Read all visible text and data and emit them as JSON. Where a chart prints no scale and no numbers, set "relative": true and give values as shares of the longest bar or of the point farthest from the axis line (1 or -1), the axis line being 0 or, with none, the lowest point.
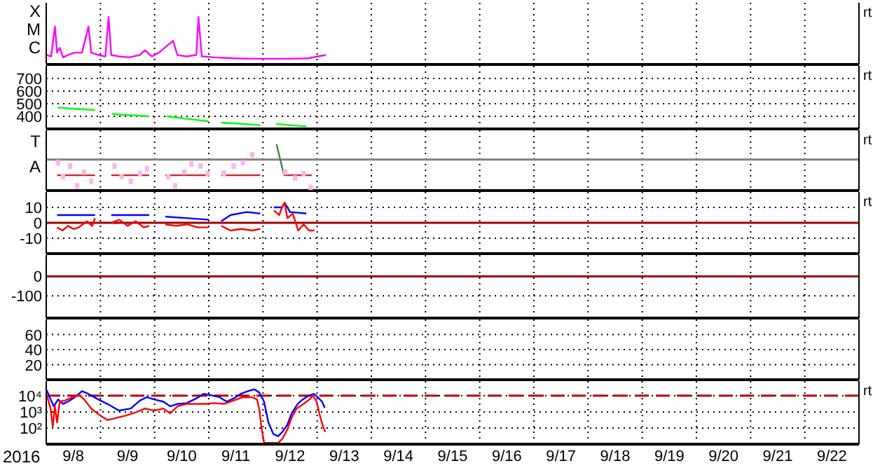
{
  "chart_data": [
    {
      "type": "line",
      "relative": true,
      "xlim": [
        "2016-09-08",
        "2016-09-23"
      ],
      "grid": "x",
      "tick_labels": false,
      "annotations": [
        "X",
        "M",
        "C",
        "rt"
      ],
      "series": [
        {
          "color": "#ff00ff",
          "x": [
            "2016-09-08T00:14",
            "2016-09-08T02:10",
            "2016-09-08T03:50",
            "2016-09-08T04:48",
            "2016-09-08T06:00",
            "2016-09-08T07:26",
            "2016-09-08T09:36",
            "2016-09-08T12:43",
            "2016-09-08T15:50",
            "2016-09-08T18:43",
            "2016-09-08T19:55",
            "2016-09-08T23:02",
            "2016-09-09T02:10",
            "2016-09-09T03:36",
            "2016-09-09T04:48",
            "2016-09-09T08:10",
            "2016-09-09T12:29",
            "2016-09-09T17:31",
            "2016-09-09T19:41",
            "2016-09-09T22:48",
            "2016-09-10T01:55",
            "2016-09-10T08:10",
            "2016-09-10T10:05",
            "2016-09-10T14:10",
            "2016-09-10T18:29",
            "2016-09-10T19:26",
            "2016-09-10T20:53",
            "2016-09-11T02:38",
            "2016-09-11T11:02",
            "2016-09-11T19:12",
            "2016-09-12T03:36",
            "2016-09-12T11:46",
            "2016-09-12T20:10",
            "2016-09-13T00:14",
            "2016-09-13T03:50"
          ],
          "values": [
            0.2,
            0.17,
            0.8,
            0.25,
            0.35,
            0.15,
            0.2,
            0.25,
            0.25,
            0.8,
            0.25,
            0.2,
            0.17,
            1,
            0.2,
            0.17,
            0.15,
            0.2,
            0.3,
            0.17,
            0.25,
            0.5,
            0.2,
            0.17,
            0.2,
            1,
            0.17,
            0.15,
            0.13,
            0.12,
            0.12,
            0.12,
            0.13,
            0.17,
            0.2
          ]
        }
      ]
    },
    {
      "type": "line",
      "xlim": [
        "2016-09-08",
        "2016-09-23"
      ],
      "ylim": [
        300,
        800
      ],
      "yticks": [
        400,
        500,
        600,
        700
      ],
      "grid": true,
      "tick_labels": "y",
      "annotations": [
        "rt"
      ],
      "series": [
        {
          "color": "#00ff00",
          "x": [
            "2016-09-08T05:02",
            "2016-09-08T12:00",
            "2016-09-08T21:36",
            "2016-09-08T22:48",
            "2016-09-09T05:02",
            "2016-09-09T12:00",
            "2016-09-09T21:36",
            "2016-09-09T22:48",
            "2016-09-10T05:17",
            "2016-09-10T14:24",
            "2016-09-11T00:00",
            "2016-09-11T02:24",
            "2016-09-11T05:31",
            "2016-09-11T14:24",
            "2016-09-11T22:48",
            "2016-09-12T02:24",
            "2016-09-12T05:46",
            "2016-09-12T12:00",
            "2016-09-12T19:12"
          ],
          "values": [
            470,
            460,
            450,
            null,
            420,
            410,
            400,
            null,
            400,
            380,
            360,
            null,
            350,
            340,
            330,
            null,
            340,
            330,
            320
          ]
        }
      ]
    },
    {
      "type": "line",
      "relative": true,
      "xlim": [
        "2016-09-08",
        "2016-09-23"
      ],
      "grid": "x",
      "tick_labels": false,
      "annotations": [
        "T",
        "A",
        "rt"
      ],
      "ref_lines": [
        {
          "axis": "y",
          "value": 0.67,
          "color": "#808080"
        }
      ],
      "series": [
        {
          "type": "scatter",
          "color": "#ffb4f0",
          "x": [
            "2016-09-08T05:17",
            "2016-09-08T07:26",
            "2016-09-08T10:34",
            "2016-09-08T13:41",
            "2016-09-08T16:48",
            "2016-09-08T19:55",
            "2016-09-09T06:14",
            "2016-09-09T09:22",
            "2016-09-09T13:26",
            "2016-09-09T17:31",
            "2016-09-09T20:38",
            "2016-09-10T06:00",
            "2016-09-10T09:07",
            "2016-09-10T13:12",
            "2016-09-10T16:19",
            "2016-09-10T20:24",
            "2016-09-10T23:31",
            "2016-09-11T06:43",
            "2016-09-11T11:02",
            "2016-09-11T15:07",
            "2016-09-11T19:12",
            "2016-09-12T09:50",
            "2016-09-12T14:10",
            "2016-09-12T18:00",
            "2016-09-12T21:07"
          ],
          "values": [
            0.6,
            0.3,
            0.53,
            0.1,
            0.4,
            0.2,
            0.53,
            0.3,
            0.2,
            0.37,
            0.47,
            0.3,
            0.1,
            0.4,
            0.57,
            0.53,
            0.37,
            0.37,
            0.53,
            0.6,
            0.77,
            0.4,
            0.27,
            0.37,
            0.07
          ]
        },
        {
          "color": "#d02020",
          "x": [
            "2016-09-08T04:48",
            "2016-09-08T21:36",
            "2016-09-08T22:48",
            "2016-09-09T04:48",
            "2016-09-09T21:36",
            "2016-09-09T22:48",
            "2016-09-10T04:48",
            "2016-09-11T00:00",
            "2016-09-11T02:24",
            "2016-09-11T05:31",
            "2016-09-11T22:48",
            "2016-09-12T02:24",
            "2016-09-12T09:22",
            "2016-09-12T21:36"
          ],
          "values": [
            0.33,
            0.33,
            null,
            0.33,
            0.33,
            null,
            0.33,
            0.33,
            null,
            0.33,
            0.33,
            null,
            0.33,
            0.33
          ]
        },
        {
          "color": "#408040",
          "x": [
            "2016-09-12T06:00",
            "2016-09-12T09:22"
          ],
          "values": [
            1,
            0.33
          ]
        }
      ]
    },
    {
      "type": "line",
      "xlim": [
        "2016-09-08",
        "2016-09-23"
      ],
      "ylim": [
        -20,
        20
      ],
      "yticks": [
        -10,
        0,
        10
      ],
      "grid": true,
      "tick_labels": "y",
      "annotations": [
        "rt"
      ],
      "ref_lines": [
        {
          "axis": "y",
          "value": 0,
          "color": "#a00000"
        }
      ],
      "series": [
        {
          "color": "#0000ff",
          "x": [
            "2016-09-08T04:48",
            "2016-09-08T12:00",
            "2016-09-08T21:36",
            "2016-09-08T22:48",
            "2016-09-09T04:48",
            "2016-09-09T12:00",
            "2016-09-09T21:36",
            "2016-09-09T22:48",
            "2016-09-10T04:48",
            "2016-09-10T14:24",
            "2016-09-11T00:00",
            "2016-09-11T02:24",
            "2016-09-11T05:31",
            "2016-09-11T09:36",
            "2016-09-11T16:48",
            "2016-09-11T22:48",
            "2016-09-12T02:24",
            "2016-09-12T04:48",
            "2016-09-12T08:24",
            "2016-09-12T09:36",
            "2016-09-12T12:00",
            "2016-09-12T19:12"
          ],
          "values": [
            5,
            5,
            5,
            null,
            5,
            5,
            5,
            null,
            4,
            3,
            2,
            null,
            1,
            5,
            7,
            6,
            null,
            10,
            10,
            13,
            7,
            6
          ]
        },
        {
          "color": "#ff0000",
          "x": [
            "2016-09-08T04:48",
            "2016-09-08T07:12",
            "2016-09-08T09:36",
            "2016-09-08T12:00",
            "2016-09-08T14:24",
            "2016-09-08T18:00",
            "2016-09-08T20:24",
            "2016-09-08T21:36",
            "2016-09-08T22:48",
            "2016-09-09T04:48",
            "2016-09-09T08:24",
            "2016-09-09T12:00",
            "2016-09-09T15:36",
            "2016-09-09T19:12",
            "2016-09-09T21:36",
            "2016-09-09T22:48",
            "2016-09-10T04:48",
            "2016-09-10T09:36",
            "2016-09-10T14:24",
            "2016-09-10T19:12",
            "2016-09-11T00:00",
            "2016-09-11T02:24",
            "2016-09-11T05:31",
            "2016-09-11T09:36",
            "2016-09-11T14:24",
            "2016-09-11T19:12",
            "2016-09-11T22:48",
            "2016-09-12T02:24",
            "2016-09-12T04:48",
            "2016-09-12T07:12",
            "2016-09-12T08:24",
            "2016-09-12T09:36",
            "2016-09-12T10:48",
            "2016-09-12T13:12",
            "2016-09-12T15:36",
            "2016-09-12T18:00",
            "2016-09-12T20:24",
            "2016-09-12T22:48"
          ],
          "values": [
            -3,
            -5,
            -2,
            -4,
            -3,
            1,
            -2,
            3,
            null,
            0,
            2,
            -2,
            1,
            -3,
            -2,
            null,
            -1,
            -2,
            -1,
            -3,
            -3,
            null,
            -2,
            -5,
            -4,
            -5,
            -4,
            null,
            8,
            5,
            10,
            13,
            3,
            6,
            -5,
            -1,
            -5,
            -5
          ]
        }
      ]
    },
    {
      "type": "line",
      "xlim": [
        "2016-09-08",
        "2016-09-23"
      ],
      "ylim": [
        -215,
        110
      ],
      "yticks": [
        -100,
        0
      ],
      "grid": true,
      "tick_labels": "y",
      "ref_lines": [
        {
          "axis": "y",
          "value": 0,
          "color": "#a00000"
        }
      ]
    },
    {
      "type": "line",
      "xlim": [
        "2016-09-08",
        "2016-09-23"
      ],
      "ylim": [
        0,
        80
      ],
      "yticks": [
        20,
        40,
        60
      ],
      "grid": true,
      "tick_labels": "y"
    },
    {
      "type": "line",
      "xlim": [
        "2016-09-08",
        "2016-09-23"
      ],
      "xticks": [
        {
          "value": "2016-09-08T12:00",
          "label": "9/8"
        },
        {
          "value": "2016-09-09",
          "label": null
        },
        {
          "value": "2016-09-09T12:00",
          "label": "9/9"
        },
        {
          "value": "2016-09-10",
          "label": null
        },
        {
          "value": "2016-09-10T12:00",
          "label": "9/10"
        },
        {
          "value": "2016-09-11",
          "label": null
        },
        {
          "value": "2016-09-11T12:00",
          "label": "9/11"
        },
        {
          "value": "2016-09-12",
          "label": null
        },
        {
          "value": "2016-09-12T12:00",
          "label": "9/12"
        },
        {
          "value": "2016-09-13",
          "label": null
        },
        {
          "value": "2016-09-13T12:00",
          "label": "9/13"
        },
        {
          "value": "2016-09-14",
          "label": null
        },
        {
          "value": "2016-09-14T12:00",
          "label": "9/14"
        },
        {
          "value": "2016-09-15",
          "label": null
        },
        {
          "value": "2016-09-15T12:00",
          "label": "9/15"
        },
        {
          "value": "2016-09-16",
          "label": null
        },
        {
          "value": "2016-09-16T12:00",
          "label": "9/16"
        },
        {
          "value": "2016-09-17",
          "label": null
        },
        {
          "value": "2016-09-17T12:00",
          "label": "9/17"
        },
        {
          "value": "2016-09-18",
          "label": null
        },
        {
          "value": "2016-09-18T12:00",
          "label": "9/18"
        },
        {
          "value": "2016-09-19",
          "label": null
        },
        {
          "value": "2016-09-19T12:00",
          "label": "9/19"
        },
        {
          "value": "2016-09-20",
          "label": null
        },
        {
          "value": "2016-09-20T12:00",
          "label": "9/20"
        },
        {
          "value": "2016-09-21",
          "label": null
        },
        {
          "value": "2016-09-21T12:00",
          "label": "9/21"
        },
        {
          "value": "2016-09-22",
          "label": null
        },
        {
          "value": "2016-09-22T12:00",
          "label": "9/22"
        }
      ],
      "log": true,
      "ylim": [
        10,
        80000
      ],
      "yticks": [
        {
          "value": 100,
          "label": "10²"
        },
        {
          "value": 1000,
          "label": "10³"
        },
        {
          "value": 10000,
          "label": "10⁴"
        }
      ],
      "grid": true,
      "xlabel": "2016",
      "annotations": [
        "rt"
      ],
      "ref_lines": [
        {
          "axis": "y",
          "value": 10000,
          "color": "#c00000",
          "line_style": "dashed"
        }
      ],
      "series": [
        {
          "color": "#0000ff",
          "x": [
            "2016-09-08T00:14",
            "2016-09-08T01:55",
            "2016-09-08T03:22",
            "2016-09-08T05:17",
            "2016-09-08T07:26",
            "2016-09-08T09:36",
            "2016-09-08T12:43",
            "2016-09-08T15:50",
            "2016-09-08T18:43",
            "2016-09-08T23:02",
            "2016-09-09T03:07",
            "2016-09-09T08:10",
            "2016-09-09T13:26",
            "2016-09-09T17:31",
            "2016-09-09T20:38",
            "2016-09-09T23:46",
            "2016-09-10T03:50",
            "2016-09-10T06:58",
            "2016-09-10T10:05",
            "2016-09-10T14:10",
            "2016-09-10T18:29",
            "2016-09-10T21:36",
            "2016-09-11T00:43",
            "2016-09-11T04:48",
            "2016-09-11T07:55",
            "2016-09-11T11:02",
            "2016-09-11T14:10",
            "2016-09-11T17:17",
            "2016-09-11T20:10",
            "2016-09-11T22:19",
            "2016-09-12T00:29",
            "2016-09-12T02:24",
            "2016-09-12T04:34",
            "2016-09-12T06:43",
            "2016-09-12T08:38",
            "2016-09-12T10:48",
            "2016-09-12T12:43",
            "2016-09-12T15:22",
            "2016-09-12T17:02",
            "2016-09-12T20:10",
            "2016-09-12T22:34",
            "2016-09-13T00:14",
            "2016-09-13T02:10",
            "2016-09-13T03:22"
          ],
          "values": [
            22000,
            5900,
            2200,
            5900,
            3100,
            4300,
            8100,
            19000,
            13000,
            5900,
            3100,
            1200,
            1600,
            5100,
            8100,
            5900,
            4300,
            2200,
            3100,
            3500,
            6800,
            13000,
            11000,
            8100,
            4300,
            6800,
            13000,
            19000,
            25000,
            16000,
            4300,
            220,
            43,
            31,
            59,
            160,
            810,
            3100,
            5100,
            10000,
            13000,
            8100,
            4300,
            1800
          ]
        },
        {
          "color": "#ff0000",
          "x": [
            "2016-09-08T00:14",
            "2016-09-08T01:55",
            "2016-09-08T02:53",
            "2016-09-08T03:50",
            "2016-09-08T04:48",
            "2016-09-08T06:00",
            "2016-09-08T08:24",
            "2016-09-08T11:31",
            "2016-09-08T14:38",
            "2016-09-08T16:48",
            "2016-09-08T19:55",
            "2016-09-09T00:00",
            "2016-09-09T03:07",
            "2016-09-09T07:12",
            "2016-09-09T11:17",
            "2016-09-09T15:36",
            "2016-09-09T19:41",
            "2016-09-09T23:46",
            "2016-09-10T03:50",
            "2016-09-10T06:58",
            "2016-09-10T10:05",
            "2016-09-10T14:10",
            "2016-09-10T18:29",
            "2016-09-10T22:34",
            "2016-09-11T02:38",
            "2016-09-11T06:43",
            "2016-09-11T11:02",
            "2016-09-11T15:07",
            "2016-09-11T19:12",
            "2016-09-11T21:22",
            "2016-09-11T22:19",
            "2016-09-11T23:17",
            "2016-09-12T00:29",
            "2016-09-12T02:24",
            "2016-09-12T06:43",
            "2016-09-12T08:38",
            "2016-09-12T10:48",
            "2016-09-12T12:43",
            "2016-09-12T14:53",
            "2016-09-12T18:00",
            "2016-09-12T21:07",
            "2016-09-12T22:05",
            "2016-09-12T23:46",
            "2016-09-13T01:12",
            "2016-09-13T02:38",
            "2016-09-13T03:36"
          ],
          "values": [
            11000,
            1600,
            120,
            2200,
            220,
            4300,
            5100,
            8100,
            11000,
            5900,
            1600,
            590,
            310,
            430,
            590,
            930,
            1600,
            1200,
            1600,
            810,
            2200,
            3100,
            3100,
            3100,
            3500,
            3100,
            5100,
            8100,
            8100,
            5900,
            1600,
            120,
            12,
            12,
            12,
            22,
            81,
            430,
            1600,
            3100,
            6800,
            11000,
            4300,
            590,
            120,
            59
          ]
        }
      ]
    }
  ]
}
